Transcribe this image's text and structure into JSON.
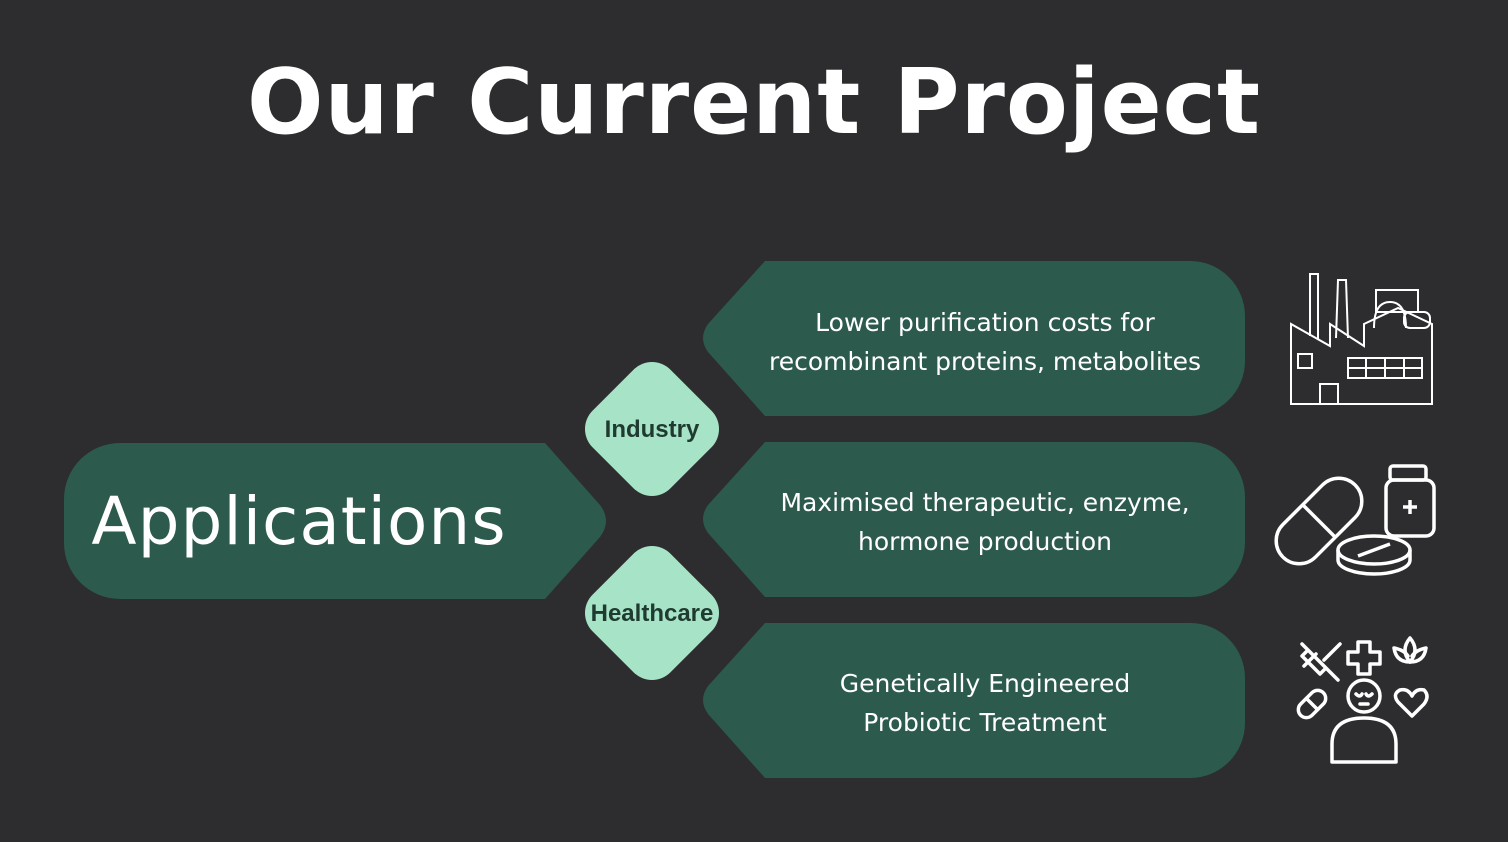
{
  "title": "Our Current Project",
  "colors": {
    "background": "#2d2d2f",
    "panel": "#2c5a4c",
    "diamond": "#a7e3c6",
    "text_light": "#ffffff",
    "text_dark": "#1f3a30"
  },
  "center_label": "Applications",
  "categories": [
    {
      "label": "Industry"
    },
    {
      "label": "Healthcare"
    }
  ],
  "items": [
    {
      "line1": "Lower purification costs for",
      "line2": "recombinant proteins, metabolites",
      "icon": "factory-icon"
    },
    {
      "line1": "Maximised therapeutic, enzyme,",
      "line2": "hormone production",
      "icon": "pills-icon"
    },
    {
      "line1": "Genetically Engineered",
      "line2": "Probiotic Treatment",
      "icon": "healthcare-wellness-icon"
    }
  ]
}
